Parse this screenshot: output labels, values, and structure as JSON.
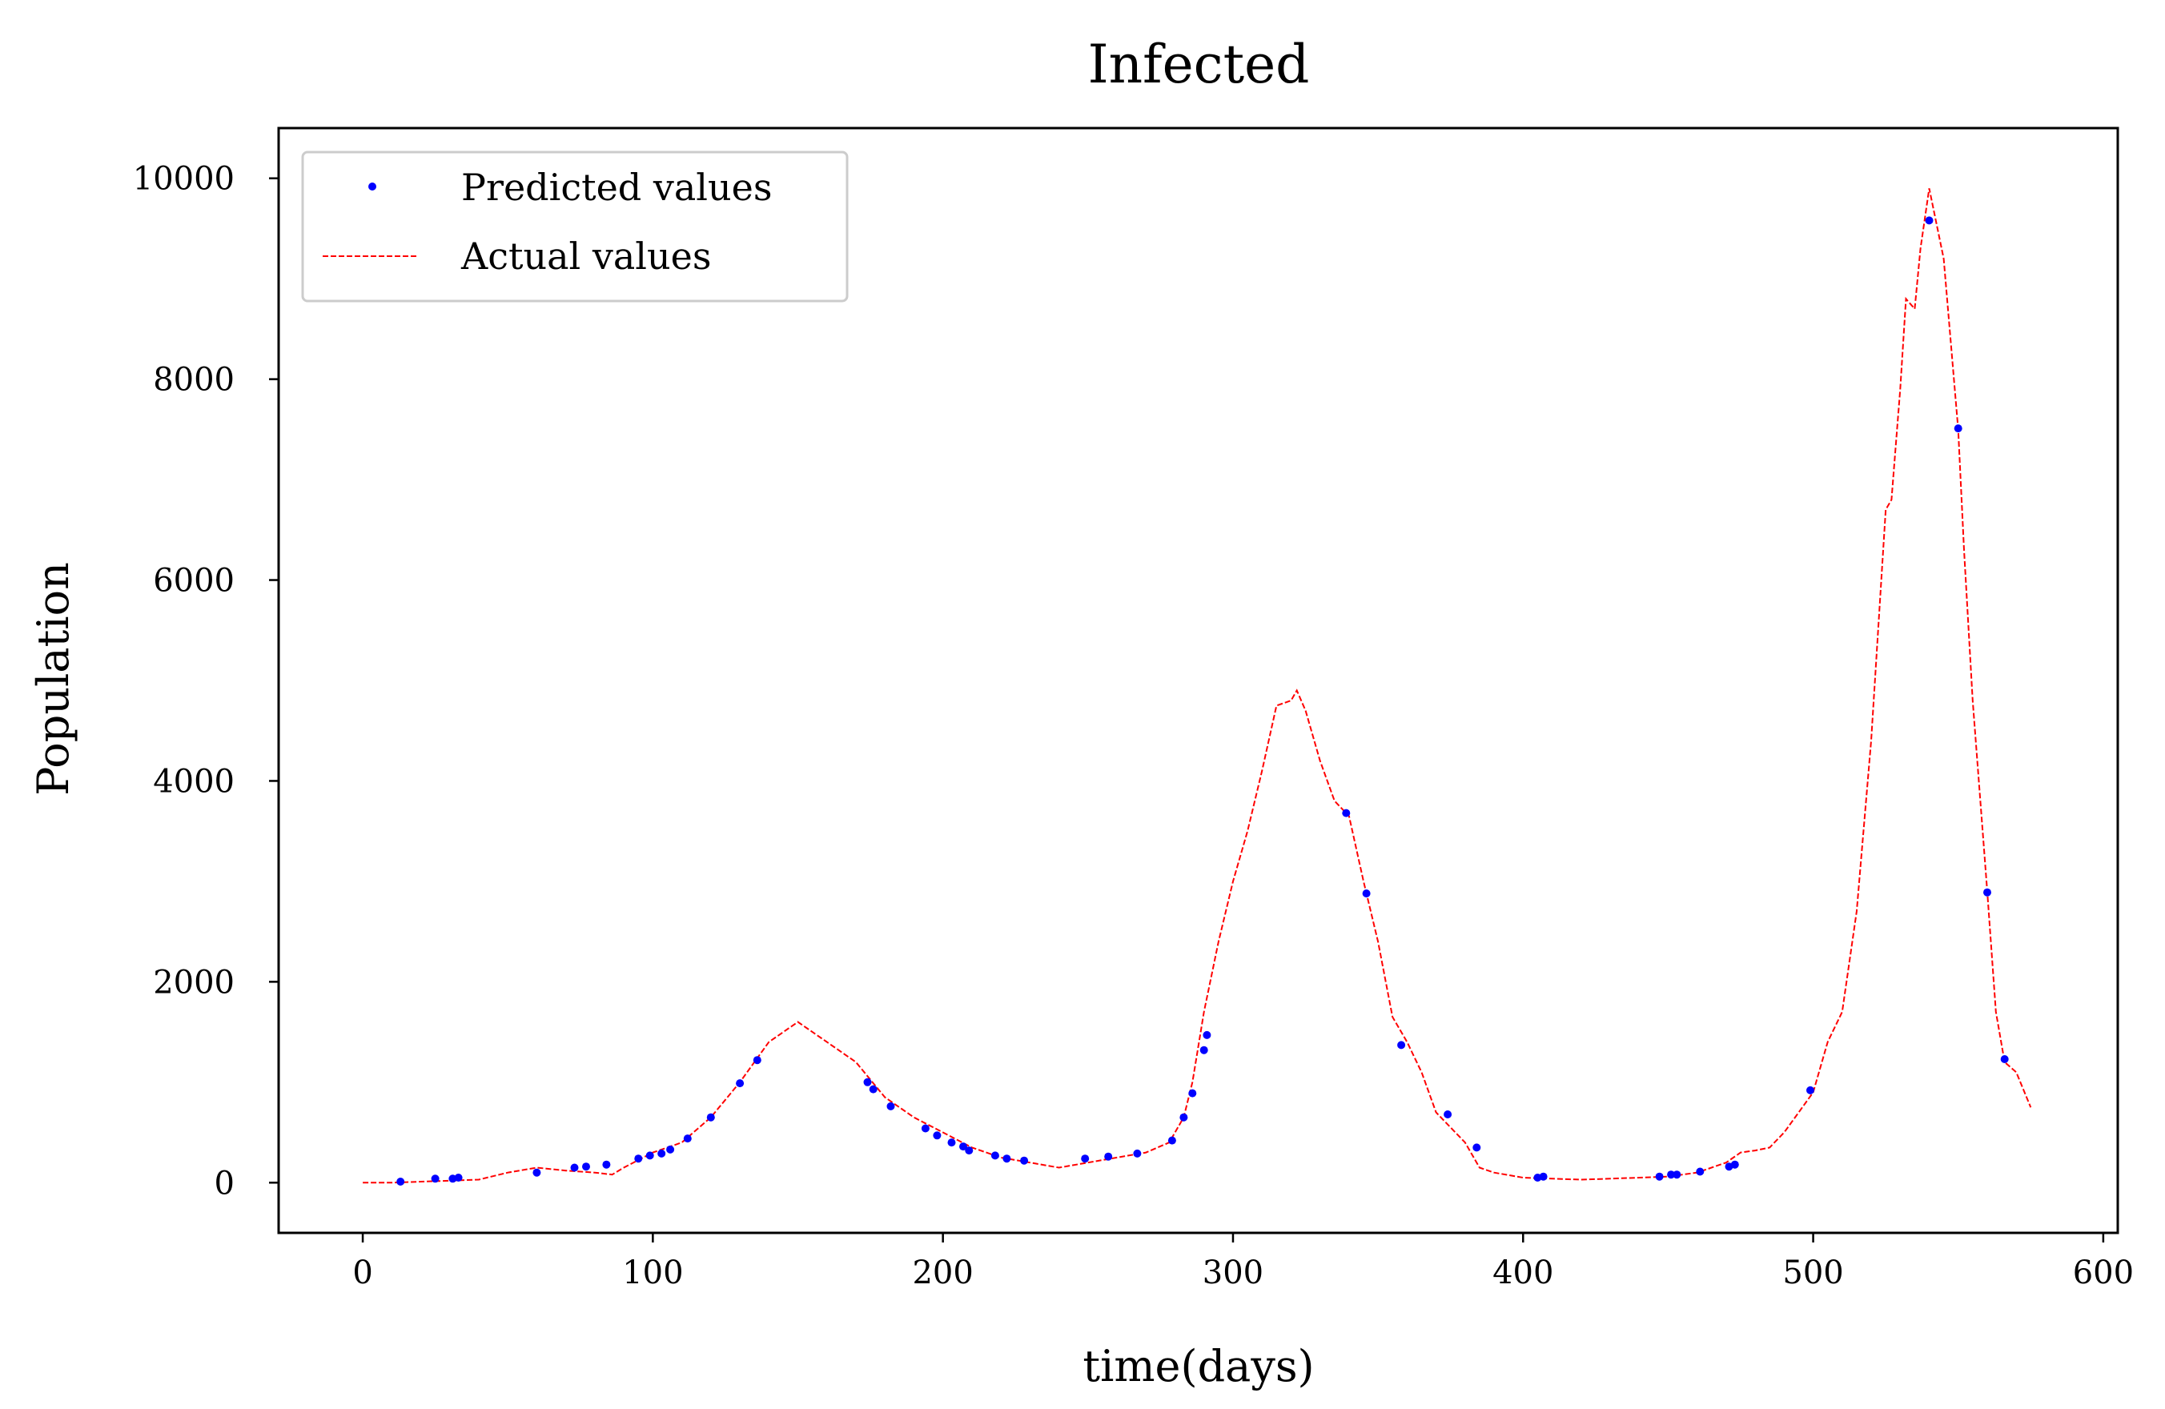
{
  "chart_data": {
    "type": "line",
    "title": "Infected",
    "xlabel": "time(days)",
    "ylabel": "Population",
    "xlim": [
      -29,
      605
    ],
    "ylim": [
      -500,
      10500
    ],
    "xticks": [
      0,
      100,
      200,
      300,
      400,
      500,
      600
    ],
    "yticks": [
      0,
      2000,
      4000,
      6000,
      8000,
      10000
    ],
    "grid": false,
    "legend_position": "top-left",
    "colors": {
      "predicted": "#0000ff",
      "actual": "#ff0000",
      "axes": "#000000"
    },
    "series": [
      {
        "name": "Actual values",
        "style": "dashed-line",
        "x": [
          0,
          10,
          20,
          30,
          40,
          50,
          60,
          70,
          80,
          86,
          90,
          100,
          110,
          120,
          130,
          140,
          145,
          150,
          160,
          170,
          180,
          190,
          200,
          210,
          220,
          230,
          240,
          250,
          260,
          270,
          278,
          283,
          286,
          290,
          295,
          300,
          305,
          310,
          315,
          320,
          322,
          325,
          330,
          335,
          340,
          345,
          350,
          355,
          360,
          365,
          370,
          380,
          385,
          390,
          400,
          410,
          420,
          430,
          440,
          450,
          460,
          470,
          475,
          480,
          485,
          490,
          495,
          500,
          505,
          510,
          515,
          520,
          525,
          527,
          530,
          532,
          535,
          537,
          540,
          545,
          550,
          552,
          555,
          560,
          563,
          566,
          570,
          575
        ],
        "y": [
          0,
          0,
          10,
          20,
          30,
          100,
          150,
          120,
          100,
          80,
          150,
          300,
          400,
          650,
          1000,
          1400,
          1500,
          1600,
          1400,
          1200,
          850,
          650,
          500,
          350,
          250,
          200,
          150,
          200,
          250,
          300,
          400,
          650,
          1000,
          1700,
          2400,
          3000,
          3500,
          4100,
          4750,
          4800,
          4900,
          4700,
          4200,
          3800,
          3650,
          3000,
          2400,
          1650,
          1400,
          1100,
          700,
          400,
          150,
          100,
          50,
          40,
          30,
          40,
          50,
          60,
          100,
          200,
          300,
          320,
          350,
          500,
          700,
          900,
          1400,
          1700,
          2700,
          4400,
          6700,
          6800,
          7900,
          8800,
          8700,
          9300,
          9900,
          9200,
          7500,
          6300,
          4800,
          2900,
          1700,
          1200,
          1100,
          750
        ]
      },
      {
        "name": "Predicted values",
        "style": "markers",
        "x": [
          13,
          25,
          31,
          33,
          60,
          73,
          77,
          84,
          95,
          99,
          103,
          106,
          112,
          120,
          130,
          136,
          174,
          176,
          182,
          194,
          198,
          203,
          207,
          209,
          218,
          222,
          228,
          249,
          257,
          267,
          279,
          283,
          286,
          290,
          291,
          339,
          346,
          358,
          374,
          384,
          405,
          407,
          447,
          451,
          453,
          461,
          471,
          473,
          499,
          540,
          550,
          560,
          566
        ],
        "y": [
          10,
          40,
          40,
          50,
          100,
          150,
          160,
          180,
          240,
          270,
          290,
          330,
          440,
          650,
          990,
          1220,
          1000,
          930,
          760,
          540,
          470,
          400,
          360,
          320,
          270,
          240,
          220,
          240,
          260,
          290,
          420,
          650,
          890,
          1320,
          1470,
          3680,
          2880,
          1370,
          680,
          350,
          50,
          60,
          60,
          80,
          80,
          110,
          160,
          180,
          920,
          9580,
          7510,
          2890,
          1230
        ]
      }
    ]
  }
}
